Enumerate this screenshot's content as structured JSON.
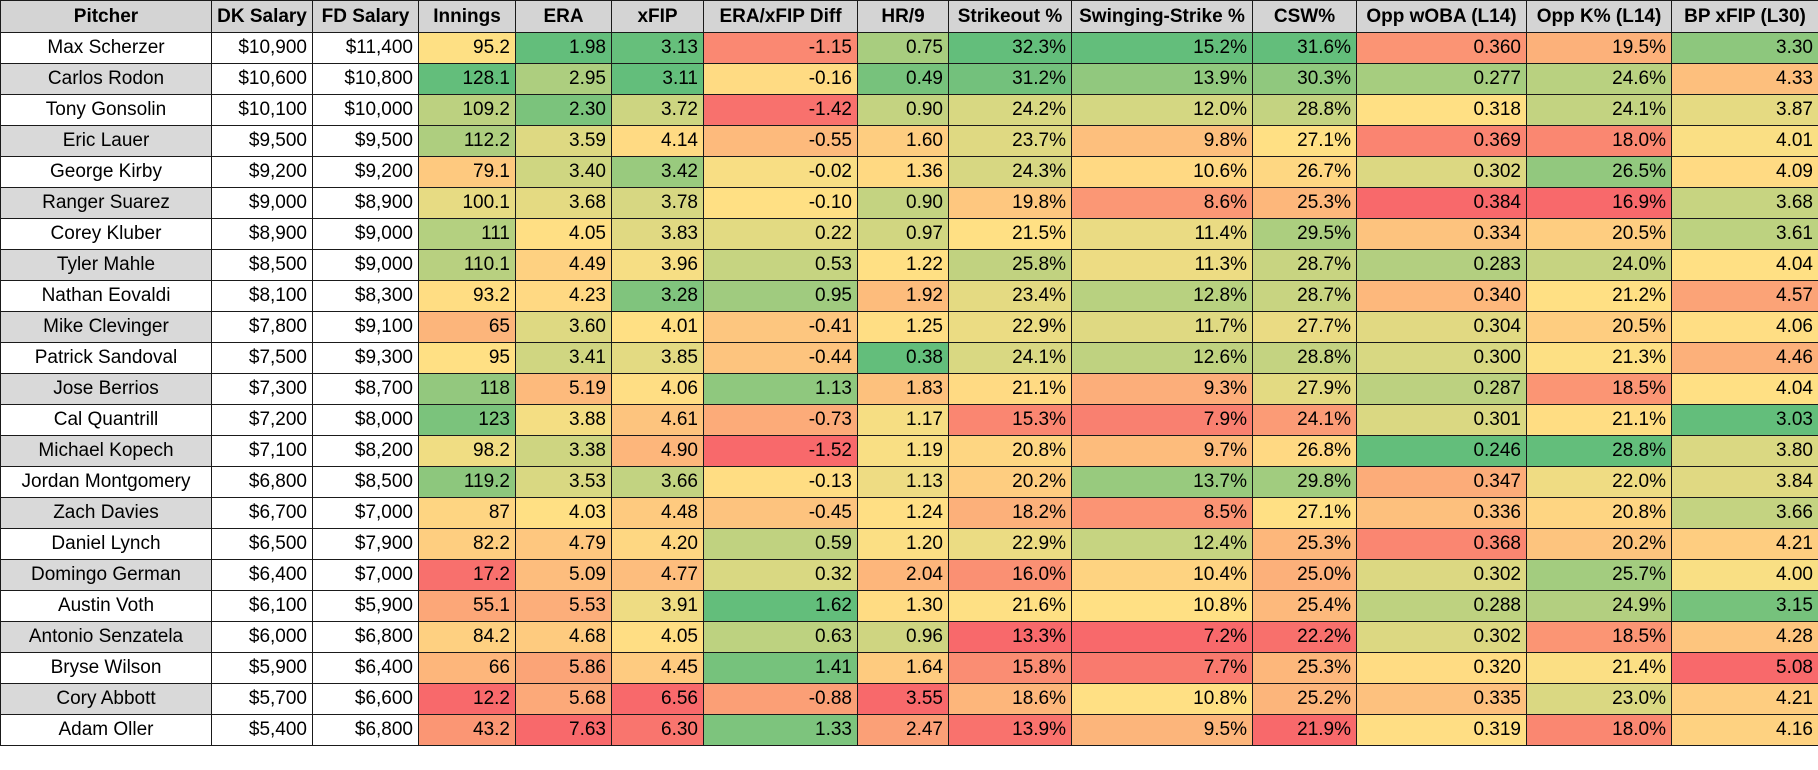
{
  "table": {
    "headers": [
      "Pitcher",
      "DK Salary",
      "FD Salary",
      "Innings",
      "ERA",
      "xFIP",
      "ERA/xFIP Diff",
      "HR/9",
      "Strikeout %",
      "Swinging-Strike %",
      "CSW%",
      "Opp wOBA (L14)",
      "Opp K% (L14)",
      "BP xFIP (L30)"
    ],
    "rows": [
      [
        "Max Scherzer",
        "$10,900",
        "$11,400",
        "95.2",
        "1.98",
        "3.13",
        "-1.15",
        "0.75",
        "32.3%",
        "15.2%",
        "31.6%",
        "0.360",
        "19.5%",
        "3.30"
      ],
      [
        "Carlos Rodon",
        "$10,600",
        "$10,800",
        "128.1",
        "2.95",
        "3.11",
        "-0.16",
        "0.49",
        "31.2%",
        "13.9%",
        "30.3%",
        "0.277",
        "24.6%",
        "4.33"
      ],
      [
        "Tony Gonsolin",
        "$10,100",
        "$10,000",
        "109.2",
        "2.30",
        "3.72",
        "-1.42",
        "0.90",
        "24.2%",
        "12.0%",
        "28.8%",
        "0.318",
        "24.1%",
        "3.87"
      ],
      [
        "Eric Lauer",
        "$9,500",
        "$9,500",
        "112.2",
        "3.59",
        "4.14",
        "-0.55",
        "1.60",
        "23.7%",
        "9.8%",
        "27.1%",
        "0.369",
        "18.0%",
        "4.01"
      ],
      [
        "George Kirby",
        "$9,200",
        "$9,200",
        "79.1",
        "3.40",
        "3.42",
        "-0.02",
        "1.36",
        "24.3%",
        "10.6%",
        "26.7%",
        "0.302",
        "26.5%",
        "4.09"
      ],
      [
        "Ranger Suarez",
        "$9,000",
        "$8,900",
        "100.1",
        "3.68",
        "3.78",
        "-0.10",
        "0.90",
        "19.8%",
        "8.6%",
        "25.3%",
        "0.384",
        "16.9%",
        "3.68"
      ],
      [
        "Corey Kluber",
        "$8,900",
        "$9,000",
        "111",
        "4.05",
        "3.83",
        "0.22",
        "0.97",
        "21.5%",
        "11.4%",
        "29.5%",
        "0.334",
        "20.5%",
        "3.61"
      ],
      [
        "Tyler Mahle",
        "$8,500",
        "$9,000",
        "110.1",
        "4.49",
        "3.96",
        "0.53",
        "1.22",
        "25.8%",
        "11.3%",
        "28.7%",
        "0.283",
        "24.0%",
        "4.04"
      ],
      [
        "Nathan Eovaldi",
        "$8,100",
        "$8,300",
        "93.2",
        "4.23",
        "3.28",
        "0.95",
        "1.92",
        "23.4%",
        "12.8%",
        "28.7%",
        "0.340",
        "21.2%",
        "4.57"
      ],
      [
        "Mike Clevinger",
        "$7,800",
        "$9,100",
        "65",
        "3.60",
        "4.01",
        "-0.41",
        "1.25",
        "22.9%",
        "11.7%",
        "27.7%",
        "0.304",
        "20.5%",
        "4.06"
      ],
      [
        "Patrick Sandoval",
        "$7,500",
        "$9,300",
        "95",
        "3.41",
        "3.85",
        "-0.44",
        "0.38",
        "24.1%",
        "12.6%",
        "28.8%",
        "0.300",
        "21.3%",
        "4.46"
      ],
      [
        "Jose Berrios",
        "$7,300",
        "$8,700",
        "118",
        "5.19",
        "4.06",
        "1.13",
        "1.83",
        "21.1%",
        "9.3%",
        "27.9%",
        "0.287",
        "18.5%",
        "4.04"
      ],
      [
        "Cal Quantrill",
        "$7,200",
        "$8,000",
        "123",
        "3.88",
        "4.61",
        "-0.73",
        "1.17",
        "15.3%",
        "7.9%",
        "24.1%",
        "0.301",
        "21.1%",
        "3.03"
      ],
      [
        "Michael Kopech",
        "$7,100",
        "$8,200",
        "98.2",
        "3.38",
        "4.90",
        "-1.52",
        "1.19",
        "20.8%",
        "9.7%",
        "26.8%",
        "0.246",
        "28.8%",
        "3.80"
      ],
      [
        "Jordan Montgomery",
        "$6,800",
        "$8,500",
        "119.2",
        "3.53",
        "3.66",
        "-0.13",
        "1.13",
        "20.2%",
        "13.7%",
        "29.8%",
        "0.347",
        "22.0%",
        "3.84"
      ],
      [
        "Zach Davies",
        "$6,700",
        "$7,000",
        "87",
        "4.03",
        "4.48",
        "-0.45",
        "1.24",
        "18.2%",
        "8.5%",
        "27.1%",
        "0.336",
        "20.8%",
        "3.66"
      ],
      [
        "Daniel Lynch",
        "$6,500",
        "$7,900",
        "82.2",
        "4.79",
        "4.20",
        "0.59",
        "1.20",
        "22.9%",
        "12.4%",
        "25.3%",
        "0.368",
        "20.2%",
        "4.21"
      ],
      [
        "Domingo German",
        "$6,400",
        "$7,000",
        "17.2",
        "5.09",
        "4.77",
        "0.32",
        "2.04",
        "16.0%",
        "10.4%",
        "25.0%",
        "0.302",
        "25.7%",
        "4.00"
      ],
      [
        "Austin Voth",
        "$6,100",
        "$5,900",
        "55.1",
        "5.53",
        "3.91",
        "1.62",
        "1.30",
        "21.6%",
        "10.8%",
        "25.4%",
        "0.288",
        "24.9%",
        "3.15"
      ],
      [
        "Antonio Senzatela",
        "$6,000",
        "$6,800",
        "84.2",
        "4.68",
        "4.05",
        "0.63",
        "0.96",
        "13.3%",
        "7.2%",
        "22.2%",
        "0.302",
        "18.5%",
        "4.28"
      ],
      [
        "Bryse Wilson",
        "$5,900",
        "$6,400",
        "66",
        "5.86",
        "4.45",
        "1.41",
        "1.64",
        "15.8%",
        "7.7%",
        "25.3%",
        "0.320",
        "21.4%",
        "5.08"
      ],
      [
        "Cory Abbott",
        "$5,700",
        "$6,600",
        "12.2",
        "5.68",
        "6.56",
        "-0.88",
        "3.55",
        "18.6%",
        "10.8%",
        "25.2%",
        "0.335",
        "23.0%",
        "4.21"
      ],
      [
        "Adam Oller",
        "$5,400",
        "$6,800",
        "43.2",
        "7.63",
        "6.30",
        "1.33",
        "2.47",
        "13.9%",
        "9.5%",
        "21.9%",
        "0.319",
        "18.0%",
        "4.16"
      ]
    ]
  },
  "heatmap_colors": {
    "good": "#63be7b",
    "mid": "#ffe084",
    "bad": "#f8696b"
  }
}
